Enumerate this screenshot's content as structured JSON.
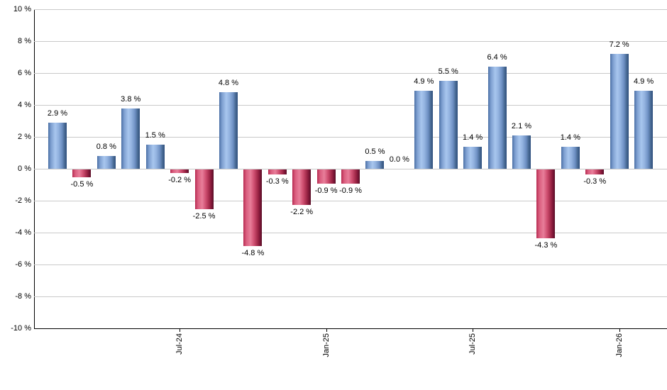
{
  "chart_data": {
    "type": "bar",
    "title": "",
    "xlabel": "",
    "ylabel": "",
    "values": [
      2.9,
      -0.5,
      0.8,
      3.8,
      1.5,
      -0.2,
      -2.5,
      4.8,
      -4.8,
      -0.3,
      -2.2,
      -0.9,
      -0.9,
      0.5,
      0.0,
      4.9,
      5.5,
      1.4,
      6.4,
      2.1,
      -4.3,
      1.4,
      -0.3,
      7.2,
      4.9
    ],
    "bar_labels": [
      "2.9 %",
      "-0.5 %",
      "0.8 %",
      "3.8 %",
      "1.5 %",
      "-0.2 %",
      "-2.5 %",
      "4.8 %",
      "-4.8 %",
      "-0.3 %",
      "-2.2 %",
      "-0.9 %",
      "-0.9 %",
      "0.5 %",
      "0.0 %",
      "4.9 %",
      "5.5 %",
      "1.4 %",
      "6.4 %",
      "2.1 %",
      "-4.3 %",
      "1.4 %",
      "-0.3 %",
      "7.2 %",
      "4.9 %"
    ],
    "y_axis": {
      "min": -10,
      "max": 10,
      "step": 2,
      "tick_labels": [
        "10 %",
        "8 %",
        "6 %",
        "4 %",
        "2 %",
        "0 %",
        "-2 %",
        "-4 %",
        "-6 %",
        "-8 %",
        "-10 %"
      ]
    },
    "x_axis": {
      "ticks": [
        {
          "label": "Jul-24",
          "bar_index": 5
        },
        {
          "label": "Jan-25",
          "bar_index": 11
        },
        {
          "label": "Jul-25",
          "bar_index": 17
        },
        {
          "label": "Jan-26",
          "bar_index": 23
        }
      ]
    },
    "legend": {
      "visible": false
    },
    "grid": "horizontal",
    "colors": {
      "positive_bar_main": "#a8c6ee",
      "positive_bar_edge": "#2f4f7f",
      "negative_bar_main": "#e87e9a",
      "negative_bar_edge": "#570e26",
      "gridline": "#c9c9c9",
      "axis": "#000000",
      "label_text": "#000000",
      "background": "#ffffff"
    }
  }
}
